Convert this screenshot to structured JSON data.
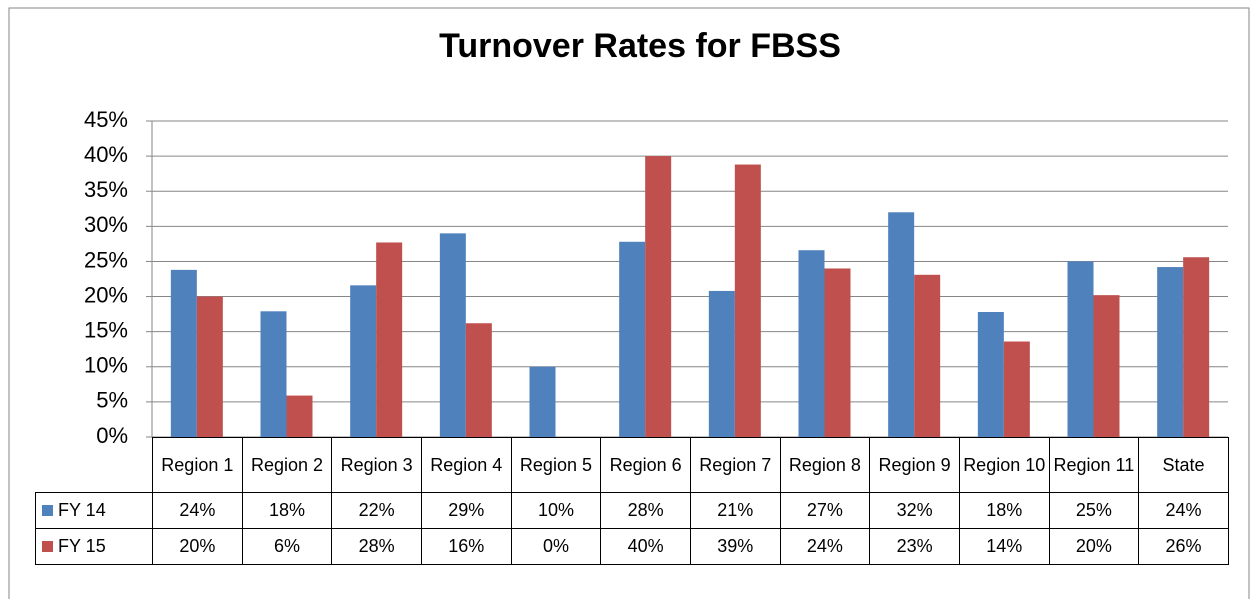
{
  "chart_data": {
    "type": "bar",
    "title": "Turnover Rates for FBSS",
    "categories": [
      "Region 1",
      "Region 2",
      "Region 3",
      "Region 4",
      "Region 5",
      "Region 6",
      "Region 7",
      "Region 8",
      "Region 9",
      "Region 10",
      "Region 11",
      "State"
    ],
    "series": [
      {
        "name": "FY 14",
        "color": "#4f81bd",
        "values": [
          23.8,
          17.9,
          21.6,
          29,
          10,
          27.8,
          20.8,
          26.6,
          32,
          17.8,
          25,
          24.2
        ],
        "value_labels": [
          "24%",
          "18%",
          "22%",
          "29%",
          "10%",
          "28%",
          "21%",
          "27%",
          "32%",
          "18%",
          "25%",
          "24%"
        ]
      },
      {
        "name": "FY 15",
        "color": "#c0504d",
        "values": [
          20,
          5.9,
          27.7,
          16.2,
          0,
          40,
          38.8,
          24,
          23.1,
          13.6,
          20.2,
          25.6
        ],
        "value_labels": [
          "20%",
          "6%",
          "28%",
          "16%",
          "0%",
          "40%",
          "39%",
          "24%",
          "23%",
          "14%",
          "20%",
          "26%"
        ]
      }
    ],
    "ylim": [
      0,
      45
    ],
    "yticks": [
      {
        "value": 0,
        "label": "0%"
      },
      {
        "value": 5,
        "label": "5%"
      },
      {
        "value": 10,
        "label": "10%"
      },
      {
        "value": 15,
        "label": "15%"
      },
      {
        "value": 20,
        "label": "20%"
      },
      {
        "value": 25,
        "label": "25%"
      },
      {
        "value": 30,
        "label": "30%"
      },
      {
        "value": 35,
        "label": "35%"
      },
      {
        "value": 40,
        "label": "40%"
      },
      {
        "value": 45,
        "label": "45%"
      }
    ],
    "grid": true
  }
}
